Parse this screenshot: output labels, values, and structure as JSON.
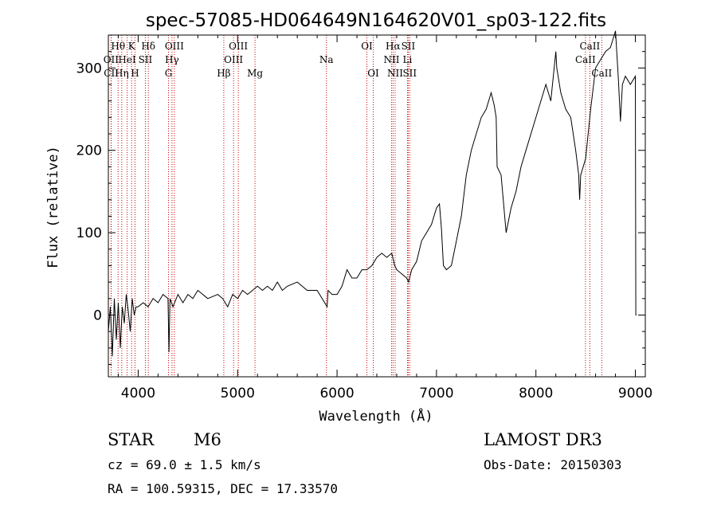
{
  "chart_data": {
    "type": "line",
    "title": "spec-57085-HD064649N164620V01_sp03-122.fits",
    "xlabel": "Wavelength (Å)",
    "ylabel": "Flux (relative)",
    "xlim": [
      3700,
      9100
    ],
    "ylim": [
      -75,
      340
    ],
    "xticks": [
      4000,
      5000,
      6000,
      7000,
      8000,
      9000
    ],
    "yticks": [
      0,
      100,
      200,
      300
    ],
    "series": [
      {
        "name": "flux",
        "x": [
          3700,
          3720,
          3740,
          3760,
          3780,
          3800,
          3820,
          3840,
          3860,
          3880,
          3900,
          3920,
          3940,
          3960,
          3980,
          4000,
          4050,
          4100,
          4150,
          4200,
          4250,
          4300,
          4310,
          4320,
          4350,
          4400,
          4450,
          4500,
          4550,
          4600,
          4700,
          4800,
          4850,
          4900,
          4950,
          5000,
          5050,
          5100,
          5150,
          5200,
          5250,
          5300,
          5350,
          5400,
          5450,
          5500,
          5600,
          5700,
          5800,
          5900,
          5910,
          5950,
          6000,
          6050,
          6100,
          6150,
          6200,
          6250,
          6300,
          6350,
          6400,
          6450,
          6500,
          6550,
          6580,
          6600,
          6650,
          6700,
          6720,
          6750,
          6800,
          6850,
          6900,
          6950,
          7000,
          7030,
          7050,
          7070,
          7100,
          7150,
          7200,
          7250,
          7300,
          7350,
          7400,
          7450,
          7500,
          7550,
          7580,
          7600,
          7610,
          7650,
          7700,
          7750,
          7800,
          7850,
          7900,
          8000,
          8100,
          8150,
          8200,
          8210,
          8250,
          8300,
          8350,
          8400,
          8430,
          8440,
          8450,
          8500,
          8550,
          8600,
          8650,
          8700,
          8750,
          8800,
          8830,
          8850,
          8870,
          8900,
          8950,
          9000,
          9005,
          9010
        ],
        "values": [
          -20,
          10,
          -50,
          20,
          -30,
          15,
          -40,
          10,
          -10,
          25,
          5,
          -20,
          20,
          0,
          10,
          10,
          15,
          10,
          20,
          15,
          25,
          20,
          -45,
          20,
          10,
          25,
          15,
          25,
          20,
          30,
          20,
          25,
          20,
          10,
          25,
          20,
          30,
          25,
          30,
          35,
          30,
          35,
          30,
          40,
          30,
          35,
          40,
          30,
          30,
          10,
          30,
          25,
          25,
          35,
          55,
          45,
          45,
          55,
          55,
          60,
          70,
          75,
          70,
          75,
          60,
          55,
          50,
          45,
          40,
          55,
          65,
          90,
          100,
          110,
          130,
          135,
          105,
          60,
          55,
          60,
          90,
          120,
          170,
          200,
          220,
          240,
          250,
          270,
          255,
          240,
          180,
          170,
          100,
          130,
          150,
          180,
          200,
          240,
          280,
          260,
          320,
          300,
          270,
          250,
          240,
          200,
          170,
          140,
          170,
          190,
          250,
          300,
          310,
          320,
          325,
          345,
          285,
          235,
          280,
          290,
          280,
          290,
          0,
          0
        ]
      }
    ],
    "spectral_lines": [
      {
        "label": "Hθ",
        "x": 3798,
        "row": 1
      },
      {
        "label": "OII",
        "x": 3727,
        "row": 2
      },
      {
        "label": "CII",
        "x": 3729,
        "row": 3
      },
      {
        "label": "K",
        "x": 3934,
        "row": 1
      },
      {
        "label": "HeI",
        "x": 3889,
        "row": 2
      },
      {
        "label": "Hη",
        "x": 3835,
        "row": 3
      },
      {
        "label": "Hδ",
        "x": 4102,
        "row": 1
      },
      {
        "label": "SII",
        "x": 4072,
        "row": 2
      },
      {
        "label": "H",
        "x": 3968,
        "row": 3
      },
      {
        "label": "OIII",
        "x": 4364,
        "row": 1
      },
      {
        "label": "Hγ",
        "x": 4340,
        "row": 2
      },
      {
        "label": "G",
        "x": 4305,
        "row": 3
      },
      {
        "label": "OIII",
        "x": 5007,
        "row": 1
      },
      {
        "label": "OIII",
        "x": 4959,
        "row": 2
      },
      {
        "label": "Hβ",
        "x": 4861,
        "row": 3
      },
      {
        "label": "Mg",
        "x": 5175,
        "row": 3
      },
      {
        "label": "Na",
        "x": 5893,
        "row": 2
      },
      {
        "label": "OI",
        "x": 6300,
        "row": 1
      },
      {
        "label": "OI",
        "x": 6364,
        "row": 3
      },
      {
        "label": "Hα",
        "x": 6563,
        "row": 1
      },
      {
        "label": "NII",
        "x": 6548,
        "row": 2
      },
      {
        "label": "NII",
        "x": 6584,
        "row": 3
      },
      {
        "label": "SII",
        "x": 6716,
        "row": 1
      },
      {
        "label": "Li",
        "x": 6708,
        "row": 2
      },
      {
        "label": "SII",
        "x": 6731,
        "row": 3
      },
      {
        "label": "CaII",
        "x": 8542,
        "row": 1
      },
      {
        "label": "CaII",
        "x": 8498,
        "row": 2
      },
      {
        "label": "CaII",
        "x": 8662,
        "row": 3
      }
    ]
  },
  "info": {
    "object_type": "STAR",
    "subclass": "M6",
    "redshift": "cz = 69.0 ± 1.5 km/s",
    "coordinates": "RA = 100.59315, DEC =  17.33570",
    "survey": "LAMOST DR3",
    "obs_date": "Obs-Date: 20150303"
  },
  "colors": {
    "line": "#000000",
    "marker": "#cc0000"
  }
}
